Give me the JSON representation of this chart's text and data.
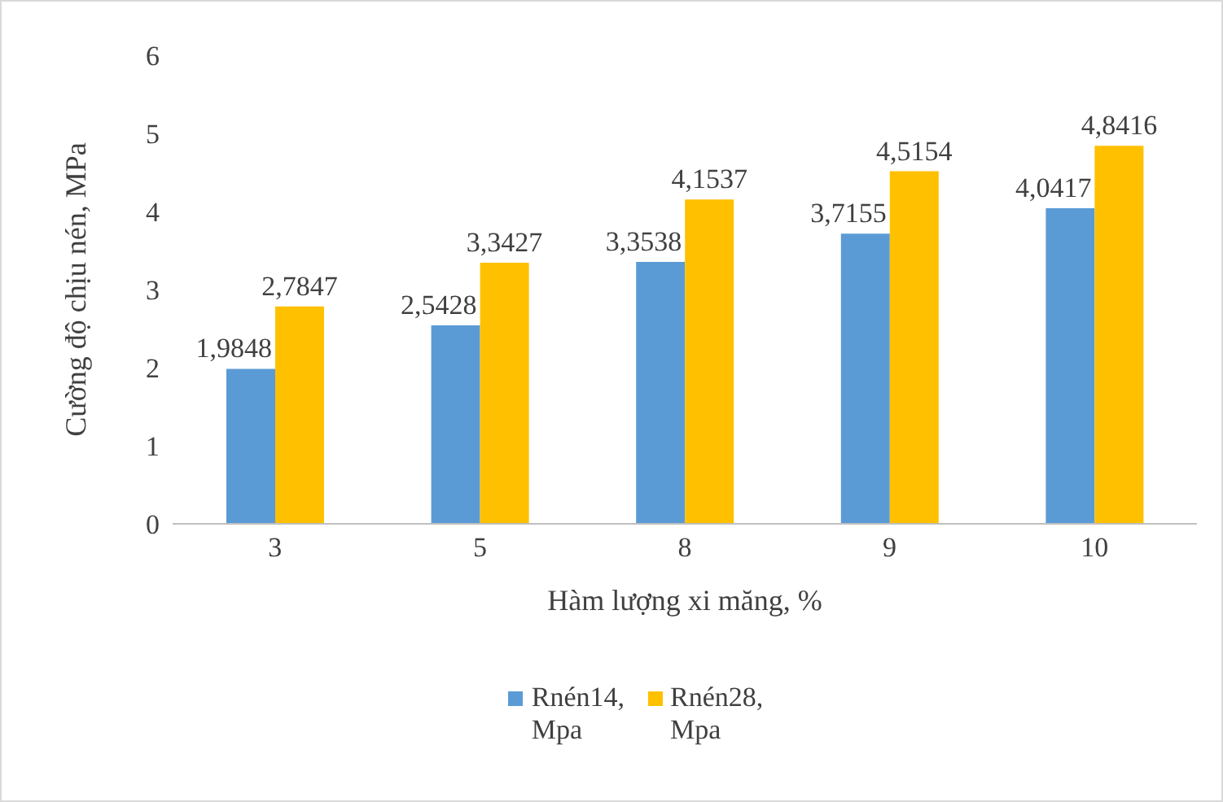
{
  "chart_data": {
    "type": "bar",
    "xlabel": "Hàm lượng xi măng, %",
    "ylabel": "Cường độ chịu nén, MPa",
    "categories": [
      "3",
      "5",
      "8",
      "9",
      "10"
    ],
    "ylim": [
      0,
      6
    ],
    "yticks": [
      0,
      1,
      2,
      3,
      4,
      5,
      6
    ],
    "grid": false,
    "legend": "bottom",
    "series": [
      {
        "name": "Rnén14, Mpa",
        "color": "#5b9bd5",
        "values": [
          1.9848,
          2.5428,
          3.3538,
          3.7155,
          4.0417
        ],
        "value_labels": [
          "1,9848",
          "2,5428",
          "3,3538",
          "3,7155",
          "4,0417"
        ]
      },
      {
        "name": "Rnén28, Mpa",
        "color": "#ffc000",
        "values": [
          2.7847,
          3.3427,
          4.1537,
          4.5154,
          4.8416
        ],
        "value_labels": [
          "2,7847",
          "3,3427",
          "4,1537",
          "4,5154",
          "4,8416"
        ]
      }
    ]
  }
}
